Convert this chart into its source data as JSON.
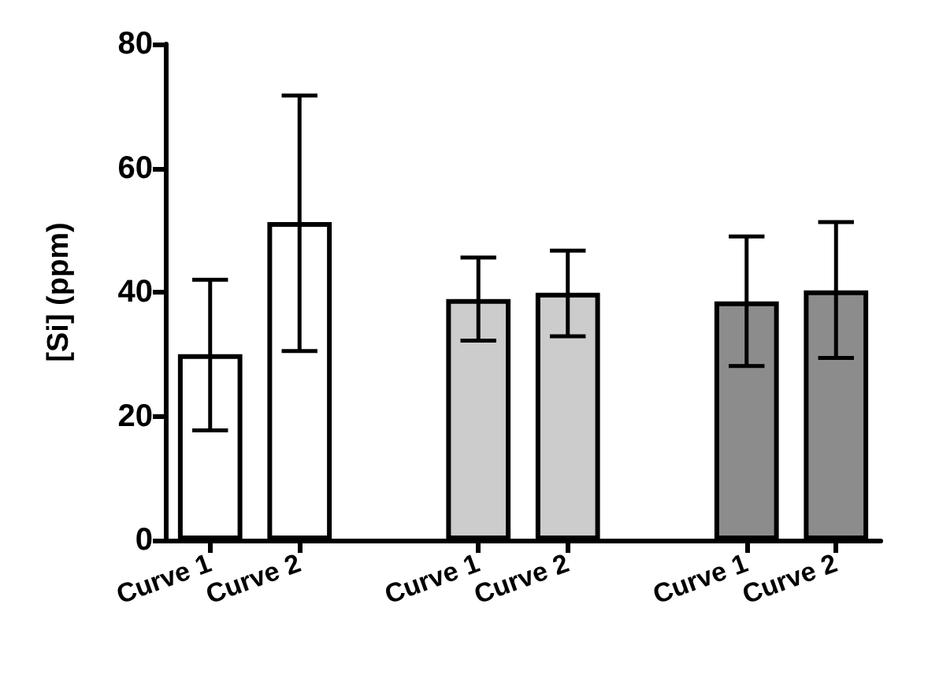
{
  "chart_data": {
    "type": "bar",
    "ylabel": "[Si] (ppm)",
    "categories": [
      "Curve 1",
      "Curve 2",
      null,
      "Curve 1",
      "Curve 2",
      null,
      "Curve 1",
      "Curve 2"
    ],
    "values": [
      30,
      51.3,
      null,
      38.9,
      39.9,
      null,
      38.5,
      40.3
    ],
    "colors": [
      "#ffffff",
      "#ffffff",
      null,
      "#cccccc",
      "#cccccc",
      null,
      "#8c8c8c",
      "#8c8c8c"
    ],
    "errors": [
      [
        17.7,
        42
      ],
      [
        30.5,
        71.7
      ],
      null,
      [
        32.2,
        45.6
      ],
      [
        32.9,
        46.7
      ],
      null,
      [
        28.1,
        49
      ],
      [
        29.4,
        51.3
      ]
    ],
    "ylim": [
      0,
      80
    ],
    "yticks": [
      0,
      20,
      40,
      60,
      80
    ],
    "grid": false
  }
}
